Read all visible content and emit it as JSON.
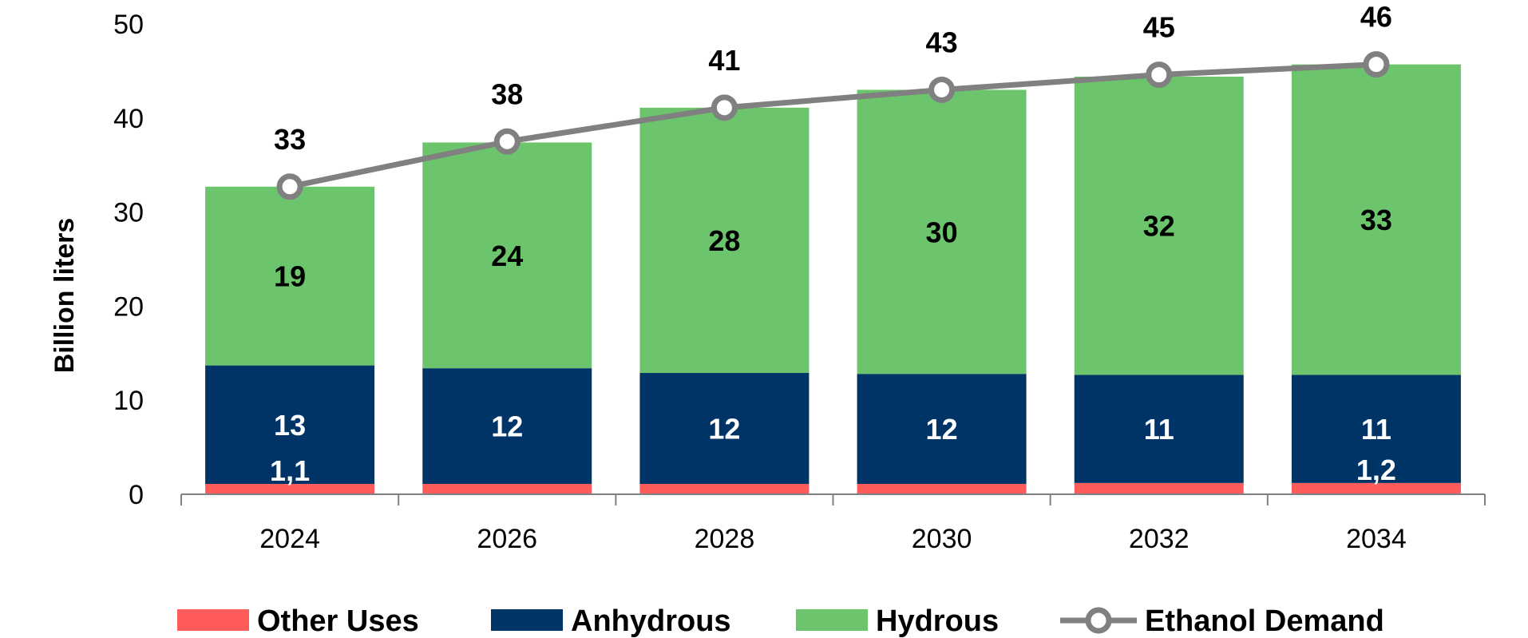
{
  "chart_data": {
    "type": "bar",
    "stacked": true,
    "categories": [
      "2024",
      "2026",
      "2028",
      "2030",
      "2032",
      "2034"
    ],
    "ylabel": "Billion liters",
    "ylim": [
      0,
      50
    ],
    "yticks": [
      0,
      10,
      20,
      30,
      40,
      50
    ],
    "grid": false,
    "legend_position": "bottom",
    "series": [
      {
        "name": "Other Uses",
        "color": "#FF5B5B",
        "values": [
          1.1,
          1.1,
          1.1,
          1.1,
          1.2,
          1.2
        ],
        "labels": [
          "1,1",
          "",
          "",
          "",
          "",
          "1,2"
        ]
      },
      {
        "name": "Anhydrous",
        "color": "#003366",
        "values": [
          12.6,
          12.3,
          11.8,
          11.7,
          11.5,
          11.5
        ],
        "labels": [
          "13",
          "12",
          "12",
          "12",
          "11",
          "11"
        ]
      },
      {
        "name": "Hydrous",
        "color": "#6CC56C",
        "values": [
          19.0,
          24.0,
          28.2,
          30.2,
          31.7,
          33.0
        ],
        "labels": [
          "19",
          "24",
          "28",
          "30",
          "32",
          "33"
        ]
      }
    ],
    "line_series": {
      "name": "Ethanol Demand",
      "color": "#808080",
      "values": [
        32.7,
        37.5,
        41.1,
        43.0,
        44.6,
        45.7
      ],
      "labels": [
        "33",
        "38",
        "41",
        "43",
        "45",
        "46"
      ]
    }
  }
}
